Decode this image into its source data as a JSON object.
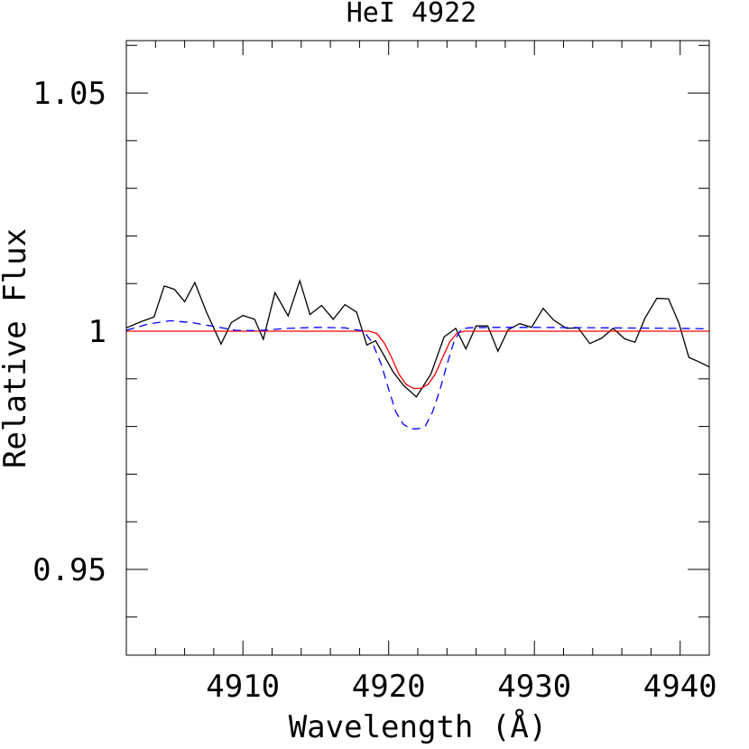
{
  "chart_data": {
    "type": "line",
    "title": "HeI 4922",
    "xlabel": "Wavelength (Å)",
    "ylabel": "Relative Flux",
    "xlim": [
      4902,
      4942
    ],
    "ylim": [
      0.932,
      1.061
    ],
    "x_ticks": [
      4910,
      4920,
      4930,
      4940
    ],
    "x_tick_labels": [
      "4910",
      "4920",
      "4930",
      "4940"
    ],
    "y_ticks": [
      0.95,
      1.0,
      1.05
    ],
    "y_tick_labels": [
      "0.95",
      "1",
      "1.05"
    ],
    "grid": false,
    "series": [
      {
        "color": "#000000",
        "style": "solid",
        "x": [
          4902,
          4903,
          4903.9,
          4904.6,
          4905.3,
          4906,
          4906.7,
          4907.5,
          4908.5,
          4909.2,
          4910,
          4910.8,
          4911.4,
          4912.2,
          4913.1,
          4913.9,
          4914.6,
          4915.4,
          4916.2,
          4917,
          4917.8,
          4918.5,
          4919.1,
          4919.7,
          4920.3,
          4921,
          4921.9,
          4922.9,
          4923.8,
          4924.6,
          4925.3,
          4926,
          4926.8,
          4927.5,
          4928.2,
          4929,
          4929.8,
          4930.6,
          4931.3,
          4932.2,
          4933,
          4933.8,
          4934.6,
          4935.4,
          4936.2,
          4936.9,
          4937.6,
          4938.4,
          4939.2,
          4939.9,
          4940.6,
          4941.2,
          4942
        ],
        "y": [
          1.0007,
          1.002,
          1.003,
          1.0095,
          1.0088,
          1.0062,
          1.0102,
          1.004,
          0.9973,
          1.0018,
          1.0033,
          1.0025,
          0.9983,
          1.0081,
          1.0032,
          1.0106,
          1.0035,
          1.0054,
          1.0025,
          1.0056,
          1.004,
          0.9971,
          0.998,
          0.9948,
          0.9915,
          0.9887,
          0.9862,
          0.991,
          0.9988,
          1.0006,
          0.9963,
          1.0011,
          1.0011,
          0.9958,
          1.0003,
          1.0016,
          1.0008,
          1.0048,
          1.0024,
          1.0006,
          1.0007,
          0.9974,
          0.9985,
          1.0006,
          0.9984,
          0.9977,
          1.0028,
          1.0069,
          1.0068,
          1.0018,
          0.9945,
          0.9937,
          0.9925
        ]
      },
      {
        "color": "#ff0000",
        "style": "solid",
        "x": [
          4902,
          4918.7,
          4919.2,
          4919.7,
          4920.2,
          4920.7,
          4921.2,
          4921.7,
          4922.2,
          4922.7,
          4923.2,
          4923.7,
          4924.2,
          4924.7,
          4925.2,
          4942
        ],
        "y": [
          1.0,
          1.0,
          0.9995,
          0.9975,
          0.9945,
          0.991,
          0.9888,
          0.988,
          0.988,
          0.9888,
          0.991,
          0.9945,
          0.9978,
          0.9996,
          1.0,
          1.0
        ]
      },
      {
        "color": "#0000ff",
        "style": "dashed",
        "x": [
          4902,
          4903.5,
          4905,
          4906.5,
          4908,
          4909.5,
          4911,
          4913,
          4915,
          4917,
          4918.3,
          4918.9,
          4919.5,
          4920,
          4920.5,
          4921,
          4921.5,
          4922,
          4922.5,
          4923,
          4923.5,
          4924,
          4924.5,
          4925,
          4925.5,
          4927,
          4930,
          4935,
          4940,
          4942
        ],
        "y": [
          1.0002,
          1.0015,
          1.0022,
          1.0018,
          1.001,
          1.0002,
          1.0001,
          1.0006,
          1.0008,
          1.0007,
          1.0,
          0.9975,
          0.993,
          0.9878,
          0.983,
          0.9805,
          0.9795,
          0.9795,
          0.98,
          0.983,
          0.9875,
          0.993,
          0.998,
          1.0005,
          1.0007,
          1.0008,
          1.0008,
          1.0007,
          1.0006,
          1.0005
        ]
      }
    ]
  }
}
